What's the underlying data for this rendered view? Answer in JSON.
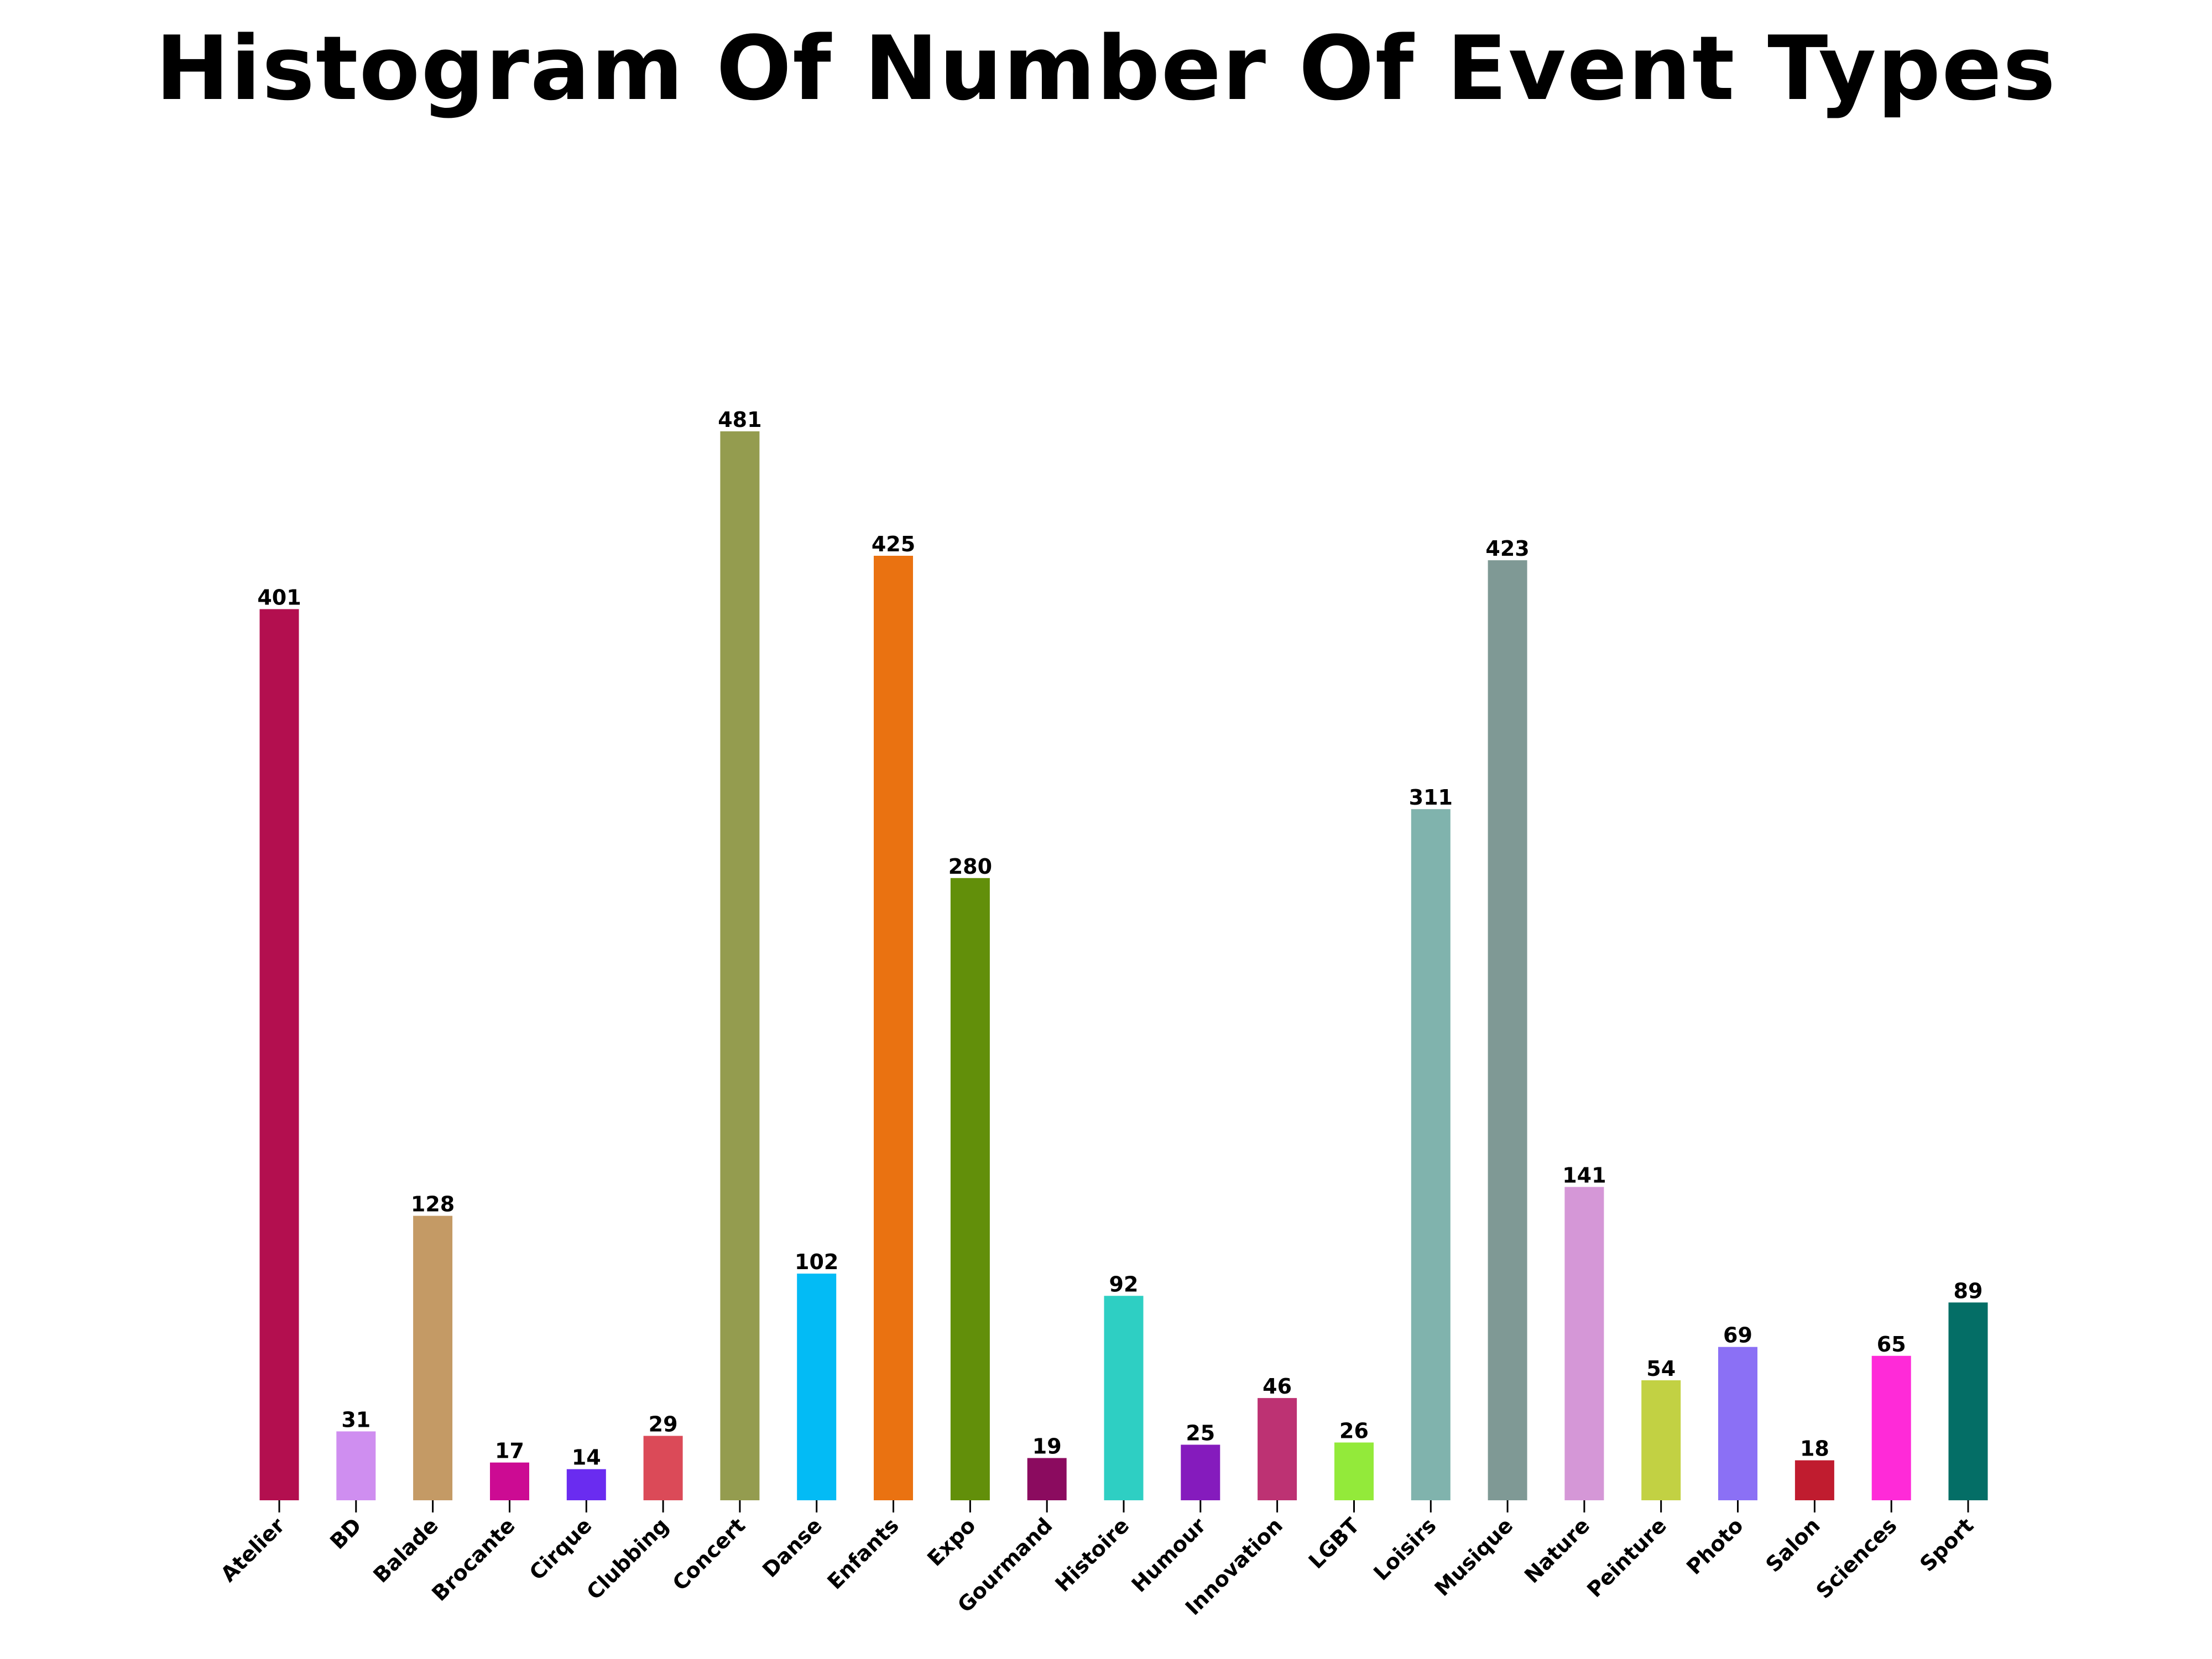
{
  "chart_data": {
    "type": "bar",
    "title": "Histogram Of Number Of Event Types",
    "xlabel": "",
    "ylabel": "",
    "categories": [
      "Atelier",
      "BD",
      "Balade",
      "Brocante",
      "Cirque",
      "Clubbing",
      "Concert",
      "Danse",
      "Enfants",
      "Expo",
      "Gourmand",
      "Histoire",
      "Humour",
      "Innovation",
      "LGBT",
      "Loisirs",
      "Musique",
      "Nature",
      "Peinture",
      "Photo",
      "Salon",
      "Sciences",
      "Sport"
    ],
    "values": [
      401,
      31,
      128,
      17,
      14,
      29,
      481,
      102,
      425,
      280,
      19,
      92,
      25,
      46,
      26,
      311,
      423,
      141,
      54,
      69,
      18,
      65,
      89
    ],
    "colors": [
      "#b30f4f",
      "#cf8ef0",
      "#c49a65",
      "#cc0b93",
      "#6a2cf0",
      "#db4a58",
      "#949c4f",
      "#03bbf5",
      "#ea7211",
      "#628f0a",
      "#8b0b5f",
      "#2ecfc3",
      "#851bbd",
      "#bd3273",
      "#93ea3a",
      "#80b3ad",
      "#7f9995",
      "#d597d7",
      "#c2d143",
      "#8b70f5",
      "#c01c2f",
      "#ff2ad8",
      "#046e66"
    ],
    "ylim": [
      0,
      590
    ],
    "grid": false,
    "legend": "none"
  }
}
